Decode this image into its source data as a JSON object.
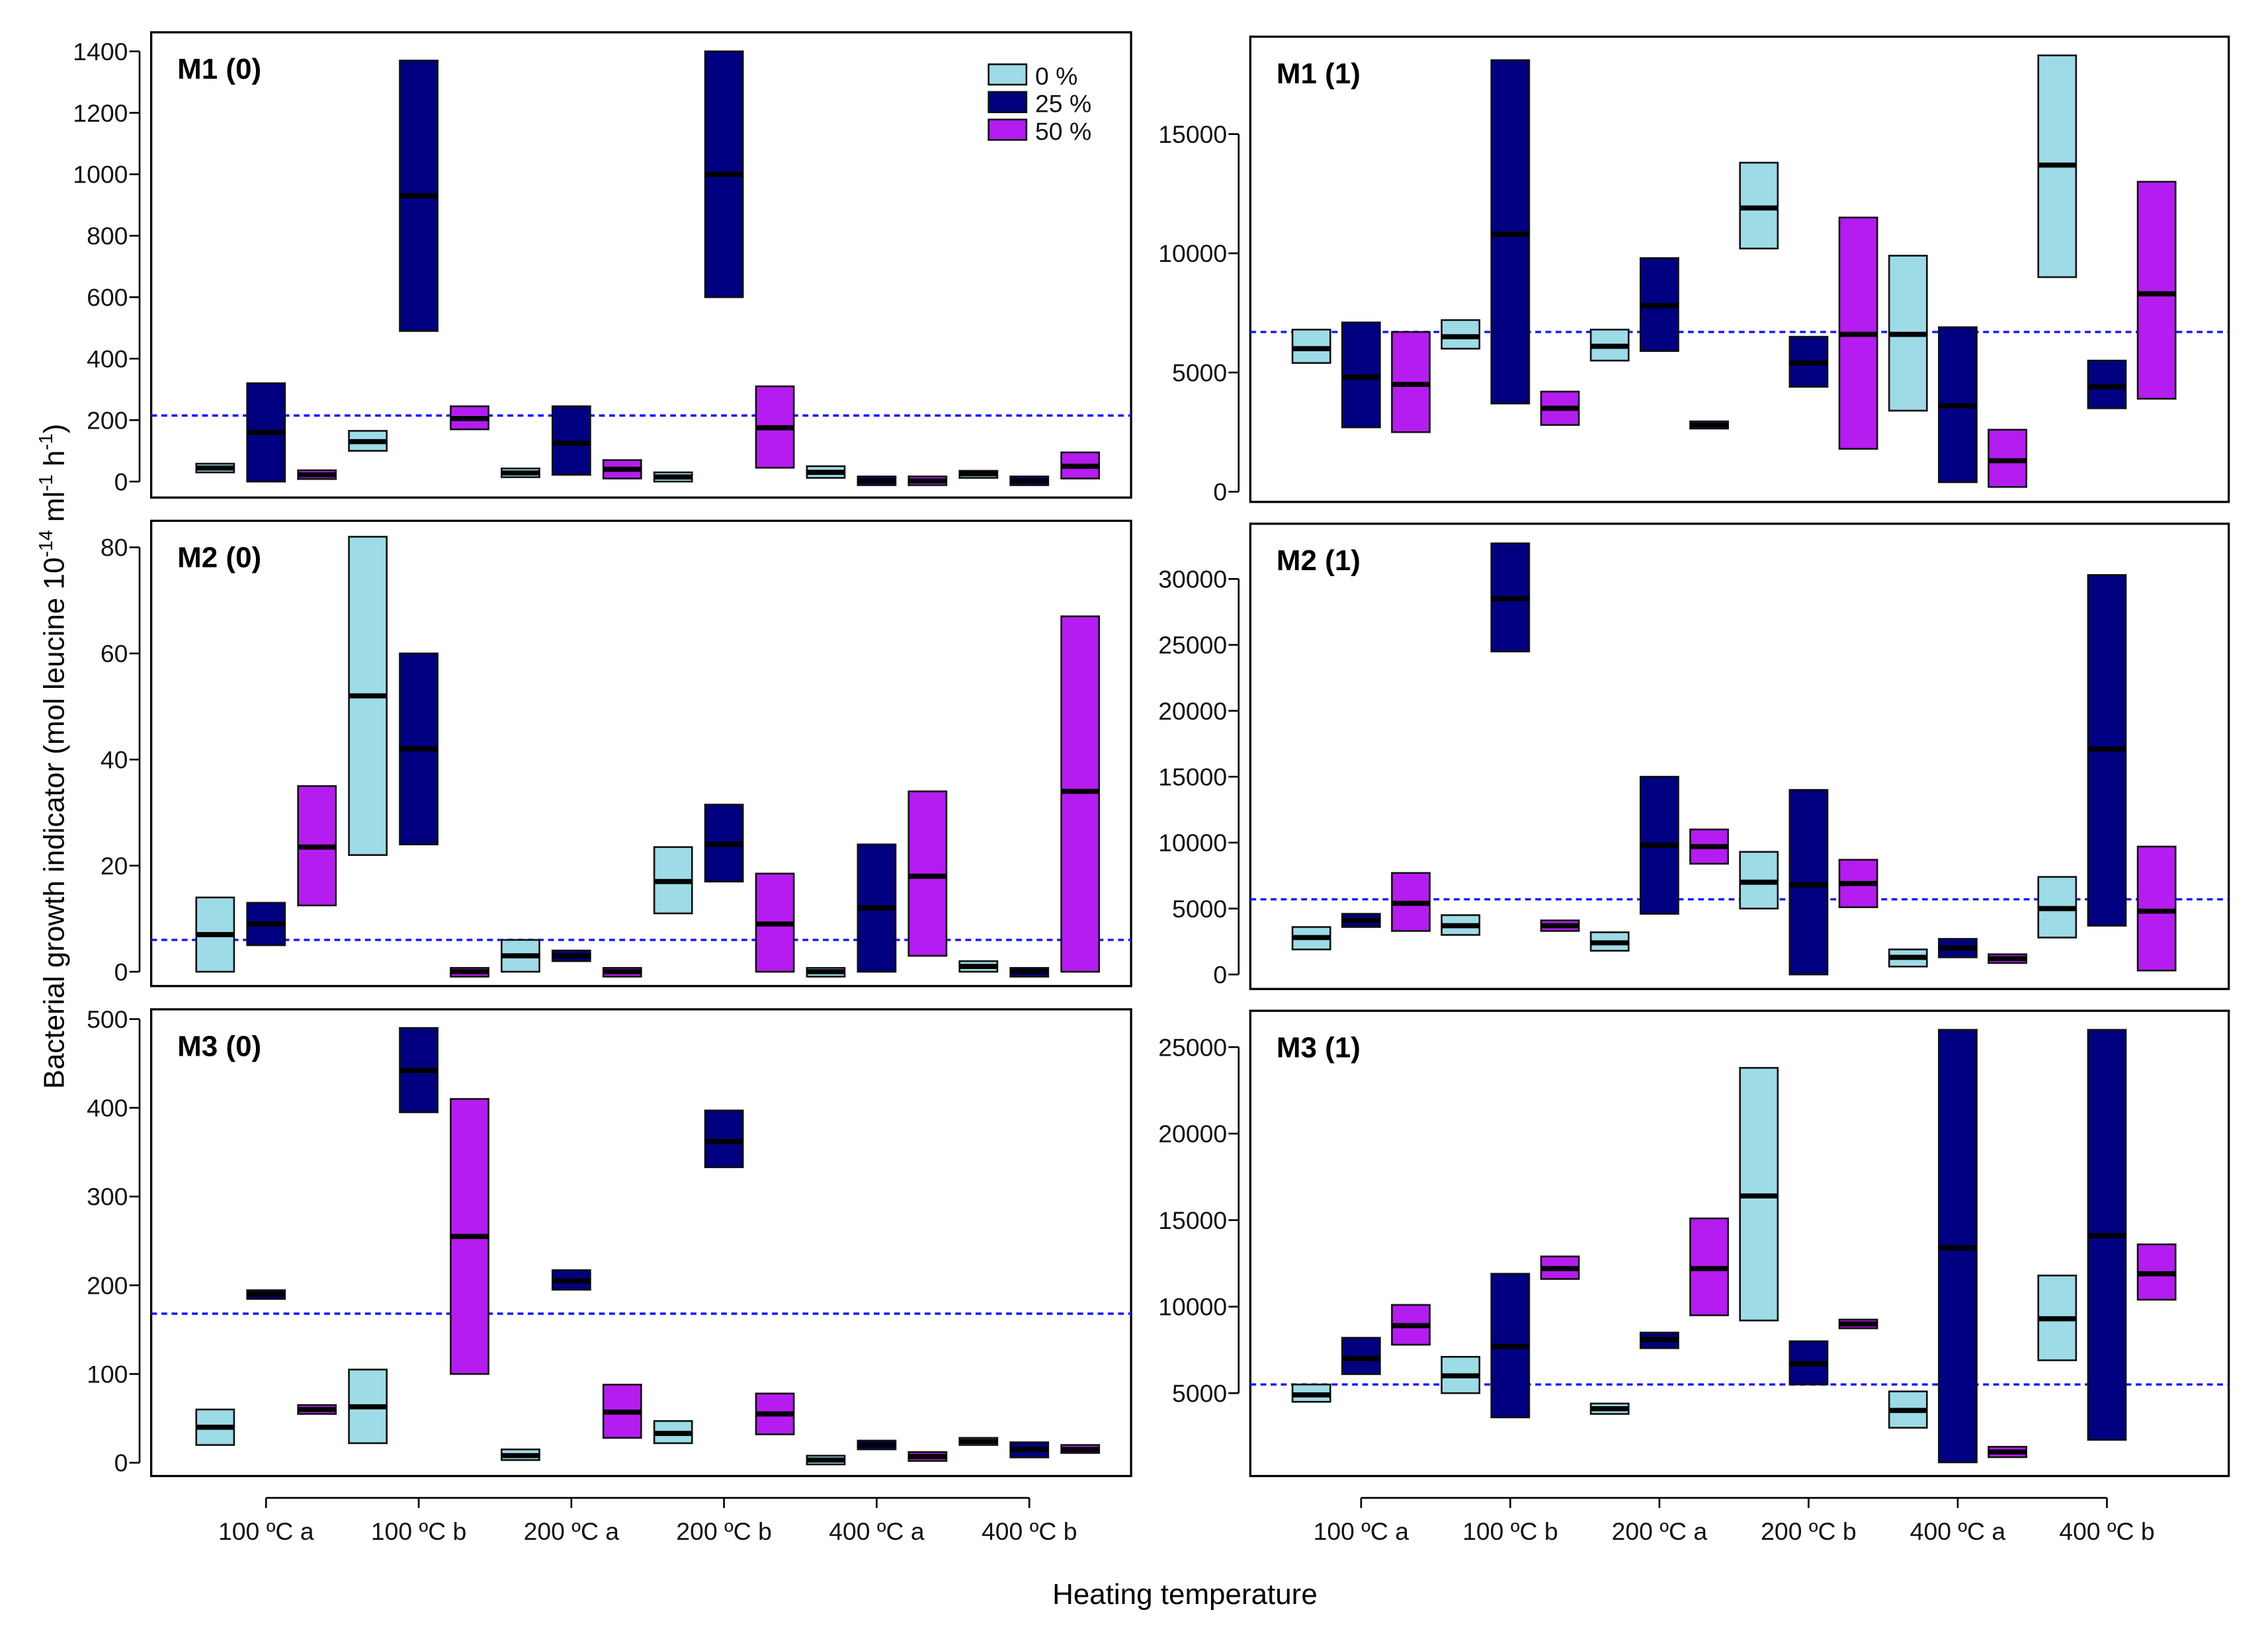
{
  "chart_data": {
    "type": "box",
    "xlabel": "Heating temperature",
    "ylabel": "Bacterial growth indicator (mol leucine 10^-14 ml^-1 h^-1)",
    "ylabel_parts": {
      "main": "Bacterial growth indicator (mol leucine 10",
      "exp1": "-14",
      "mid1": " ml",
      "exp2": "-1",
      "mid2": " h",
      "exp3": "-1",
      "end": ")"
    },
    "categories": [
      "100 ºC a",
      "100 ºC b",
      "200 ºC a",
      "200 ºC b",
      "400 ºC a",
      "400 ºC b"
    ],
    "legend": {
      "position": "top-right of M1 (0)",
      "entries": [
        {
          "label": "0 %",
          "color": "#9ddbe6"
        },
        {
          "label": "25 %",
          "color": "#000080"
        },
        {
          "label": "50 %",
          "color": "#b51cf0"
        }
      ]
    },
    "box_value_format": "[low, median, high] per category, per series (0 %, 25 %, 50 %)",
    "panels": [
      {
        "title": "M1 (0)",
        "ylim": [
          -52,
          1462
        ],
        "ticks": [
          0,
          200,
          400,
          600,
          800,
          1000,
          1200,
          1400
        ],
        "reference_line": 215,
        "series": [
          [
            [
              38,
              44,
              50
            ],
            [
              100,
              130,
              165
            ],
            [
              22,
              28,
              35
            ],
            [
              0,
              15,
              30
            ],
            [
              12,
              30,
              50
            ],
            [
              12,
              25,
              35
            ]
          ],
          [
            [
              0,
              160,
              320
            ],
            [
              490,
              930,
              1370
            ],
            [
              22,
              125,
              245
            ],
            [
              600,
              1000,
              1400
            ],
            [
              -5,
              2,
              10
            ],
            [
              -5,
              2,
              10
            ]
          ],
          [
            [
              15,
              22,
              30
            ],
            [
              170,
              205,
              245
            ],
            [
              10,
              40,
              70
            ],
            [
              45,
              175,
              310
            ],
            [
              -5,
              2,
              10
            ],
            [
              10,
              50,
              95
            ]
          ]
        ]
      },
      {
        "title": "M1 (1)",
        "ylim": [
          -427,
          19085
        ],
        "ticks": [
          0,
          5000,
          10000,
          15000
        ],
        "reference_line": 6700,
        "series": [
          [
            [
              5400,
              6000,
              6800
            ],
            [
              6000,
              6500,
              7200
            ],
            [
              5500,
              6100,
              6800
            ],
            [
              10200,
              11900,
              13800
            ],
            [
              3400,
              6600,
              9900
            ],
            [
              9000,
              13700,
              18300
            ]
          ],
          [
            [
              2700,
              4800,
              7100
            ],
            [
              3700,
              10800,
              18100
            ],
            [
              5900,
              7800,
              9800
            ],
            [
              4400,
              5400,
              6500
            ],
            [
              400,
              3600,
              6900
            ],
            [
              3500,
              4400,
              5500
            ]
          ],
          [
            [
              2500,
              4500,
              6700
            ],
            [
              2800,
              3500,
              4200
            ],
            [
              2650,
              2800,
              2950
            ],
            [
              1800,
              6600,
              11500
            ],
            [
              200,
              1300,
              2600
            ],
            [
              3900,
              8300,
              13000
            ]
          ]
        ]
      },
      {
        "title": "M2 (0)",
        "ylim": [
          -2.7,
          85
        ],
        "ticks": [
          0,
          20,
          40,
          60,
          80
        ],
        "reference_line": 6,
        "series": [
          [
            [
              0,
              7,
              14
            ],
            [
              22,
              52,
              82
            ],
            [
              0,
              3,
              6
            ],
            [
              11,
              17,
              23.5
            ],
            [
              -0.6,
              0,
              0.4
            ],
            [
              0,
              1,
              2
            ]
          ],
          [
            [
              5,
              9,
              13
            ],
            [
              24,
              42,
              60
            ],
            [
              2,
              3,
              4
            ],
            [
              17,
              24,
              31.5
            ],
            [
              0,
              12,
              24
            ],
            [
              -0.6,
              0,
              0.4
            ]
          ],
          [
            [
              12.5,
              23.5,
              35
            ],
            [
              -0.6,
              0,
              0.4
            ],
            [
              -0.6,
              0,
              0.4
            ],
            [
              0,
              9,
              18.5
            ],
            [
              3,
              18,
              34
            ],
            [
              0,
              34,
              67
            ]
          ]
        ]
      },
      {
        "title": "M2 (1)",
        "ylim": [
          -1100,
          34190
        ],
        "ticks": [
          0,
          5000,
          10000,
          15000,
          20000,
          25000,
          30000
        ],
        "reference_line": 5700,
        "series": [
          [
            [
              1900,
              2800,
              3600
            ],
            [
              3000,
              3700,
              4500
            ],
            [
              1800,
              2400,
              3200
            ],
            [
              5000,
              7000,
              9300
            ],
            [
              600,
              1300,
              1900
            ],
            [
              2800,
              5000,
              7400
            ]
          ],
          [
            [
              3600,
              4100,
              4600
            ],
            [
              24500,
              28500,
              32700
            ],
            [
              4600,
              9800,
              15000
            ],
            [
              0,
              6800,
              14000
            ],
            [
              1300,
              2000,
              2700
            ],
            [
              3700,
              17100,
              30300
            ]
          ],
          [
            [
              3300,
              5400,
              7700
            ],
            [
              3300,
              3700,
              4100
            ],
            [
              8400,
              9700,
              11000
            ],
            [
              5100,
              6900,
              8700
            ],
            [
              1050,
              1200,
              1350
            ],
            [
              300,
              4800,
              9700
            ]
          ]
        ]
      },
      {
        "title": "M3 (0)",
        "ylim": [
          -15,
          511
        ],
        "ticks": [
          0,
          100,
          200,
          300,
          400,
          500
        ],
        "reference_line": 168,
        "series": [
          [
            [
              20,
              40,
              60
            ],
            [
              22,
              63,
              105
            ],
            [
              3,
              8,
              15
            ],
            [
              22,
              33,
              47
            ],
            [
              1,
              3,
              5
            ],
            [
              20,
              24,
              28
            ]
          ],
          [
            [
              187,
              190,
              192
            ],
            [
              395,
              442,
              490
            ],
            [
              195,
              205,
              217
            ],
            [
              333,
              362,
              397
            ],
            [
              18,
              20,
              22
            ],
            [
              6,
              15,
              23
            ]
          ],
          [
            [
              55,
              60,
              65
            ],
            [
              100,
              255,
              410
            ],
            [
              28,
              57,
              88
            ],
            [
              32,
              55,
              78
            ],
            [
              2,
              7,
              12
            ],
            [
              11,
              15,
              20
            ]
          ]
        ]
      },
      {
        "title": "M3 (1)",
        "ylim": [
          210,
          27100
        ],
        "ticks": [
          5000,
          10000,
          15000,
          20000,
          25000
        ],
        "reference_line": 5500,
        "series": [
          [
            [
              4500,
              4900,
              5500
            ],
            [
              5000,
              6000,
              7100
            ],
            [
              3800,
              4100,
              4400
            ],
            [
              9200,
              16400,
              23800
            ],
            [
              3000,
              4000,
              5100
            ],
            [
              6900,
              9300,
              11800
            ]
          ],
          [
            [
              6100,
              7000,
              8200
            ],
            [
              3600,
              7700,
              11900
            ],
            [
              7600,
              8100,
              8500
            ],
            [
              5500,
              6700,
              8000
            ],
            [
              1000,
              13400,
              26000
            ],
            [
              2300,
              14100,
              26000
            ]
          ],
          [
            [
              7800,
              8900,
              10100
            ],
            [
              11600,
              12200,
              12900
            ],
            [
              9500,
              12200,
              15100
            ],
            [
              8900,
              9000,
              9100
            ],
            [
              1300,
              1600,
              1900
            ],
            [
              10400,
              11900,
              13600
            ]
          ]
        ]
      }
    ]
  }
}
